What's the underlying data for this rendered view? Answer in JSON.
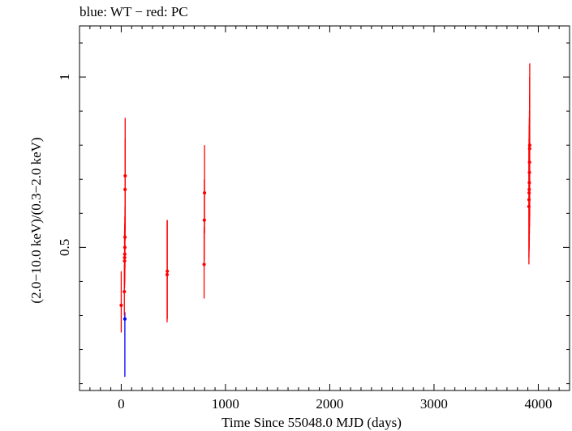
{
  "chart_data": {
    "type": "scatter",
    "title": "blue: WT − red: PC",
    "xlabel": "Time Since 55048.0 MJD (days)",
    "ylabel": "(2.0−10.0 keV)/(0.3−2.0 keV)",
    "xlim": [
      -400,
      4300
    ],
    "ylim": [
      0.08,
      1.15
    ],
    "xticks": [
      0,
      1000,
      2000,
      3000,
      4000
    ],
    "xtick_labels": [
      "0",
      "1000",
      "2000",
      "3000",
      "4000"
    ],
    "yticks": [
      0.5,
      1
    ],
    "ytick_labels": [
      "0.5",
      "1"
    ],
    "grid": false,
    "series": [
      {
        "name": "WT",
        "color": "#0000ff",
        "points": [
          {
            "x": 35,
            "y": 0.29,
            "ylo": 0.12,
            "yhi": 0.31
          }
        ]
      },
      {
        "name": "PC",
        "color": "#ff0000",
        "points": [
          {
            "x": 0,
            "y": 0.33,
            "ylo": 0.25,
            "yhi": 0.43
          },
          {
            "x": 30,
            "y": 0.37,
            "ylo": 0.3,
            "yhi": 0.45
          },
          {
            "x": 32,
            "y": 0.46,
            "ylo": 0.38,
            "yhi": 0.55
          },
          {
            "x": 33,
            "y": 0.47,
            "ylo": 0.39,
            "yhi": 0.56
          },
          {
            "x": 34,
            "y": 0.48,
            "ylo": 0.4,
            "yhi": 0.57
          },
          {
            "x": 35,
            "y": 0.5,
            "ylo": 0.42,
            "yhi": 0.59
          },
          {
            "x": 36,
            "y": 0.53,
            "ylo": 0.44,
            "yhi": 0.62
          },
          {
            "x": 37,
            "y": 0.67,
            "ylo": 0.52,
            "yhi": 0.82
          },
          {
            "x": 38,
            "y": 0.71,
            "ylo": 0.55,
            "yhi": 0.88
          },
          {
            "x": 440,
            "y": 0.42,
            "ylo": 0.28,
            "yhi": 0.58
          },
          {
            "x": 442,
            "y": 0.43,
            "ylo": 0.29,
            "yhi": 0.58
          },
          {
            "x": 795,
            "y": 0.45,
            "ylo": 0.35,
            "yhi": 0.56
          },
          {
            "x": 797,
            "y": 0.58,
            "ylo": 0.46,
            "yhi": 0.7
          },
          {
            "x": 799,
            "y": 0.66,
            "ylo": 0.54,
            "yhi": 0.8
          },
          {
            "x": 3910,
            "y": 0.62,
            "ylo": 0.45,
            "yhi": 0.8
          },
          {
            "x": 3911,
            "y": 0.64,
            "ylo": 0.47,
            "yhi": 0.82
          },
          {
            "x": 3912,
            "y": 0.66,
            "ylo": 0.49,
            "yhi": 0.84
          },
          {
            "x": 3913,
            "y": 0.67,
            "ylo": 0.5,
            "yhi": 0.86
          },
          {
            "x": 3914,
            "y": 0.69,
            "ylo": 0.52,
            "yhi": 0.88
          },
          {
            "x": 3915,
            "y": 0.72,
            "ylo": 0.54,
            "yhi": 0.9
          },
          {
            "x": 3916,
            "y": 0.75,
            "ylo": 0.56,
            "yhi": 0.95
          },
          {
            "x": 3917,
            "y": 0.79,
            "ylo": 0.58,
            "yhi": 1.0
          },
          {
            "x": 3918,
            "y": 0.8,
            "ylo": 0.59,
            "yhi": 1.04
          }
        ]
      }
    ]
  }
}
